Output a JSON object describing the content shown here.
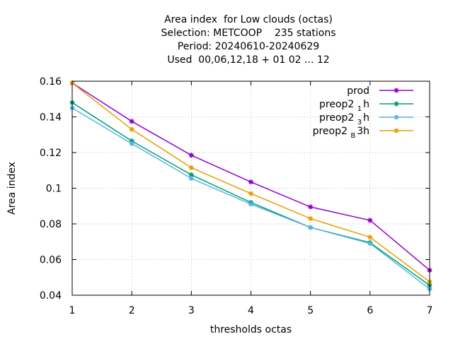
{
  "chart_data": {
    "type": "line",
    "title_lines": [
      "Area index  for Low clouds (octas)",
      "Selection: METCOOP    235 stations",
      "Period: 20240610-20240629",
      "Used  00,06,12,18 + 01 02 ... 12"
    ],
    "xlabel": "thresholds octas",
    "ylabel": "Area index",
    "xlim": [
      1,
      7
    ],
    "ylim": [
      0.04,
      0.16
    ],
    "x_ticks": [
      1,
      2,
      3,
      4,
      5,
      6,
      7
    ],
    "y_ticks": [
      0.04,
      0.06,
      0.08,
      0.1,
      0.12,
      0.14,
      0.16
    ],
    "y_tick_labels": [
      "0.04",
      "0.06",
      "0.08",
      "0.1",
      "0.12",
      "0.14",
      "0.16"
    ],
    "grid": true,
    "legend_position": "top-right",
    "x": [
      1,
      2,
      3,
      4,
      5,
      6,
      7
    ],
    "series": [
      {
        "name": "prod",
        "name_base": "prod",
        "name_sub": "",
        "name_rest": "",
        "color": "#9400d3",
        "values": [
          0.159,
          0.1375,
          0.1185,
          0.1035,
          0.0895,
          0.082,
          0.054
        ]
      },
      {
        "name": "preop2 1 h",
        "name_base": "preop2",
        "name_sub": "1",
        "name_rest": "h",
        "color": "#009e73",
        "values": [
          0.148,
          0.1265,
          0.1075,
          0.092,
          0.078,
          0.0695,
          0.0455
        ]
      },
      {
        "name": "preop2 3 h",
        "name_base": "preop2",
        "name_sub": "3",
        "name_rest": "h",
        "color": "#56b4e9",
        "values": [
          0.145,
          0.125,
          0.1055,
          0.091,
          0.078,
          0.069,
          0.0435
        ]
      },
      {
        "name": "preop2 B 3h",
        "name_base": "preop2",
        "name_sub": "B",
        "name_rest": "3h",
        "color": "#e69f00",
        "values": [
          0.159,
          0.133,
          0.1115,
          0.097,
          0.083,
          0.0725,
          0.0475
        ]
      }
    ]
  }
}
